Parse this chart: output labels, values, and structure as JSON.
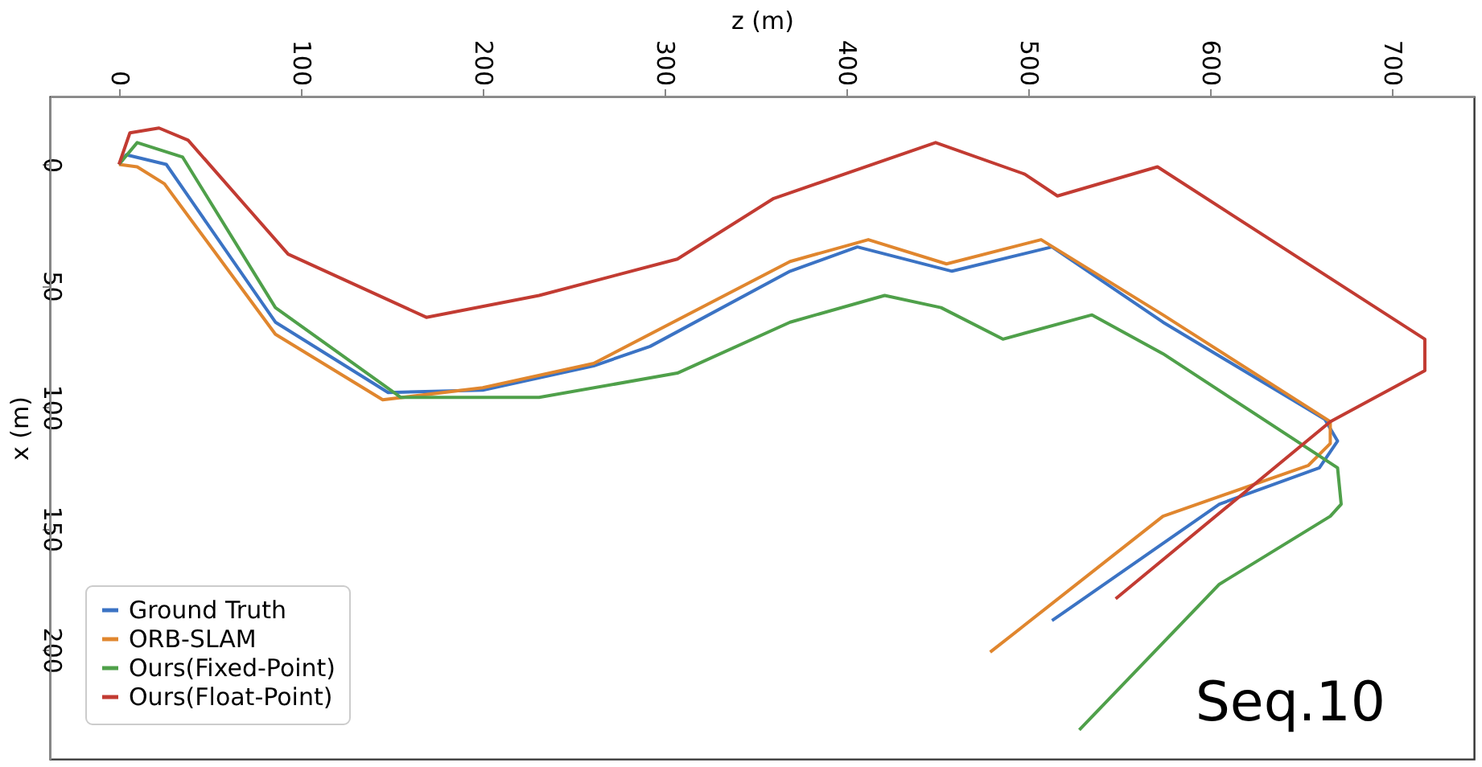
{
  "chart_data": {
    "type": "line",
    "xlabel": "z (m)",
    "ylabel": "x (m)",
    "xlim": [
      -38,
      745
    ],
    "xticks": [
      0,
      100,
      200,
      300,
      400,
      500,
      600,
      700
    ],
    "ylim": [
      245,
      -28
    ],
    "yticks": [
      0,
      50,
      100,
      150,
      200
    ],
    "grid": false,
    "legend": "bottom left",
    "marker": "none",
    "line_style": "solid",
    "annotations": [
      "Seq.10"
    ],
    "series": [
      {
        "name": "Ground Truth",
        "color": "#3b73c4",
        "x": [
          0,
          4,
          26,
          86,
          148,
          200,
          261,
          292,
          369,
          406,
          458,
          513,
          574,
          663,
          670,
          660,
          605,
          513
        ],
        "values": [
          0,
          -4,
          0,
          65,
          94,
          93,
          83,
          75,
          44,
          34,
          44,
          34,
          65,
          105,
          114,
          125,
          140,
          188
        ]
      },
      {
        "name": "ORB-SLAM",
        "color": "#e0862e",
        "x": [
          0,
          10,
          25,
          86,
          145,
          200,
          261,
          369,
          412,
          455,
          507,
          574,
          666,
          666,
          654,
          574,
          479
        ],
        "values": [
          0,
          1,
          8,
          70,
          97,
          92,
          82,
          40,
          31,
          41,
          31,
          62,
          106,
          115,
          124,
          145,
          201
        ]
      },
      {
        "name": "Ours(Fixed-Point)",
        "color": "#4fa04a",
        "x": [
          0,
          10,
          35,
          86,
          155,
          231,
          307,
          369,
          421,
          452,
          486,
          535,
          574,
          670,
          672,
          666,
          605,
          528
        ],
        "values": [
          0,
          -9,
          -3,
          59,
          96,
          96,
          86,
          65,
          54,
          59,
          72,
          62,
          78,
          125,
          140,
          145,
          173,
          233
        ]
      },
      {
        "name": "Ours(Float-Point)",
        "color": "#c23b32",
        "x": [
          0,
          6,
          22,
          38,
          93,
          169,
          231,
          307,
          360,
          449,
          498,
          516,
          571,
          718,
          718,
          666,
          548
        ],
        "values": [
          0,
          -13,
          -15,
          -10,
          37,
          63,
          54,
          39,
          14,
          -9,
          4,
          13,
          1,
          72,
          85,
          106,
          179
        ]
      }
    ]
  }
}
